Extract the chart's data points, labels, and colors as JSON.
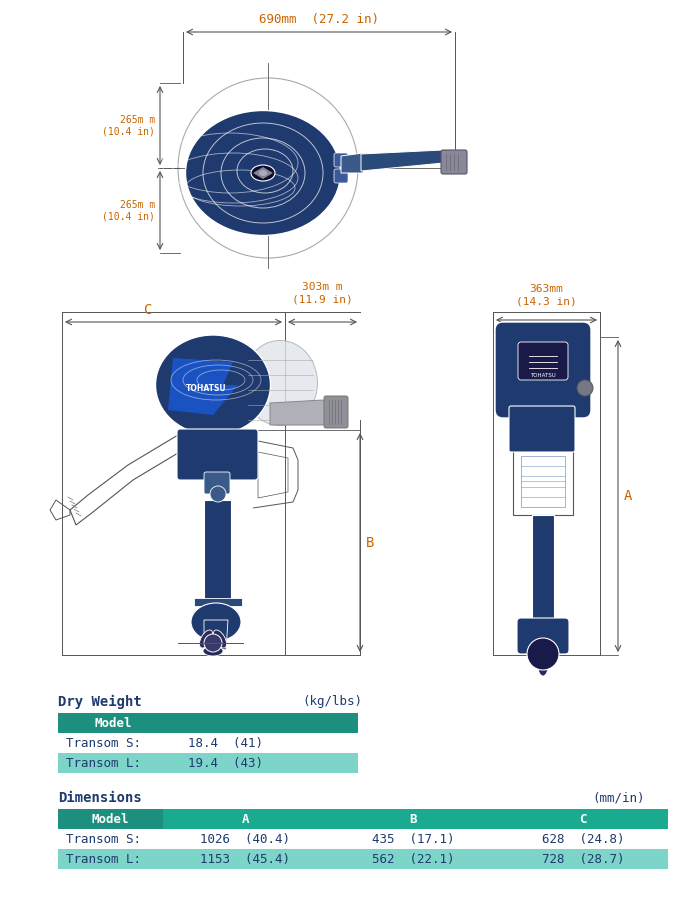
{
  "bg_color": "#ffffff",
  "teal_dark": "#1d8f7e",
  "teal_light": "#7dd4c8",
  "navy_blue": "#1e3a6e",
  "orange_text": "#c86400",
  "dim_line_color": "#555555",
  "white": "#ffffff",
  "top_dim_width_label": "690mm  (27.2 in)",
  "top_dim_h1_label": "265m m\n(10.4 in)",
  "top_dim_h2_label": "265m m\n(10.4 in)",
  "front_dim_C_label": "C",
  "front_dim_width_label": "303m m\n(11.9 in)",
  "front_dim_B_label": "B",
  "side_dim_width_label": "363mm\n(14.3 in)",
  "side_dim_A_label": "A",
  "dry_weight_title": "Dry Weight",
  "dry_weight_unit": "(kg/lbs)",
  "model_header": "Model",
  "transom_s_label": "Transom S:",
  "transom_l_label": "Transom L:",
  "transom_s_weight": "18.4  (41)",
  "transom_l_weight": "19.4  (43)",
  "dimensions_title": "Dimensions",
  "dimensions_unit": "(mm/in)",
  "dim_headers": [
    "Model",
    "A",
    "B",
    "C"
  ],
  "transom_s_dims": [
    "Transom S:",
    "1026  (40.4)",
    "435  (17.1)",
    "628  (24.8)"
  ],
  "transom_l_dims": [
    "Transom L:",
    "1153  (45.4)",
    "562  (22.1)",
    "728  (28.7)"
  ]
}
